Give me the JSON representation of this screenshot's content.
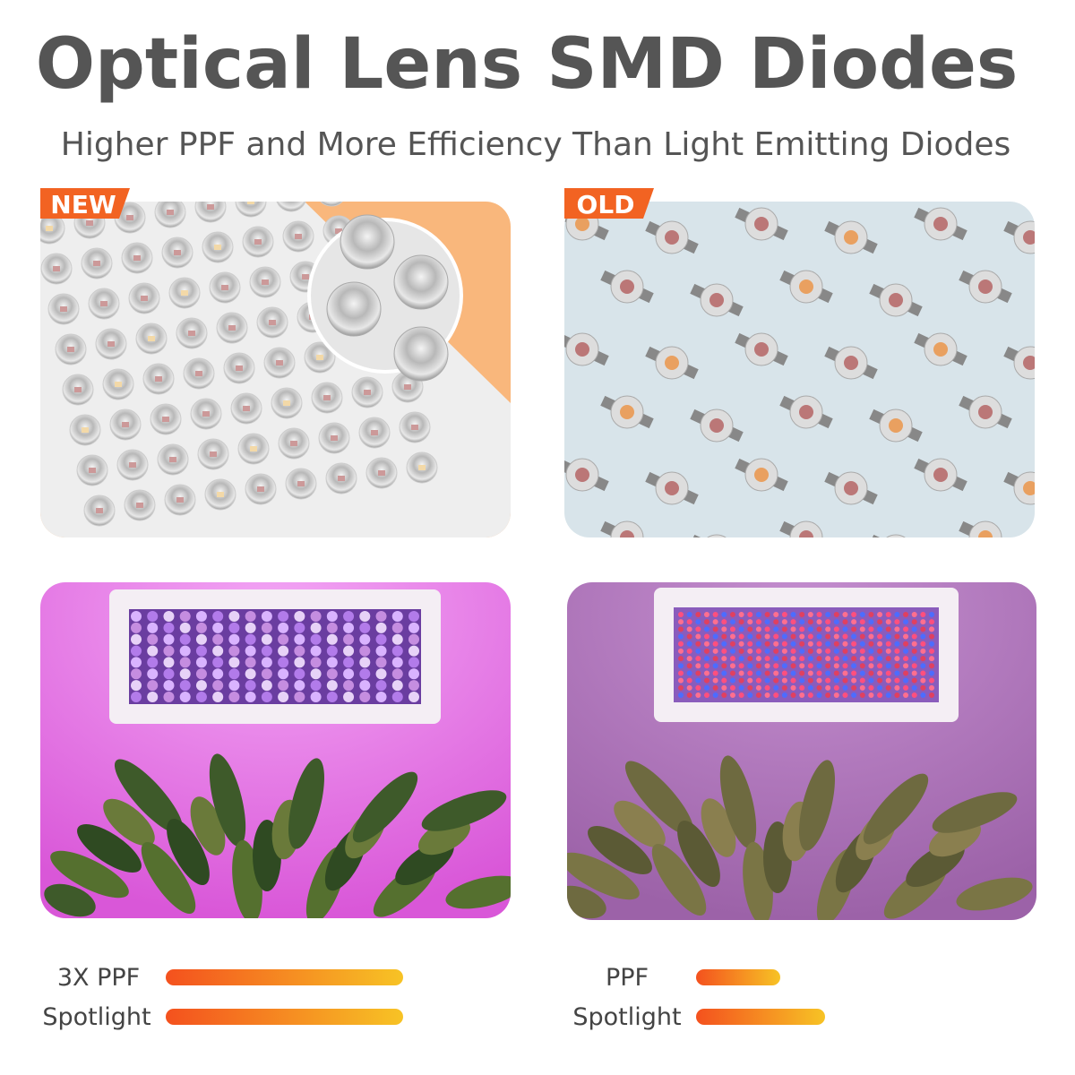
{
  "header": {
    "title": "Optical Lens SMD Diodes",
    "subtitle": "Higher PPF and  More Efficiency Than Light Emitting Diodes"
  },
  "panels": {
    "new": {
      "badge": "NEW"
    },
    "old": {
      "badge": "OLD"
    }
  },
  "comparison": {
    "new": {
      "labels": [
        "3X PPF",
        "Spotlight"
      ]
    },
    "old": {
      "labels": [
        "PPF",
        "Spotlight"
      ]
    }
  }
}
